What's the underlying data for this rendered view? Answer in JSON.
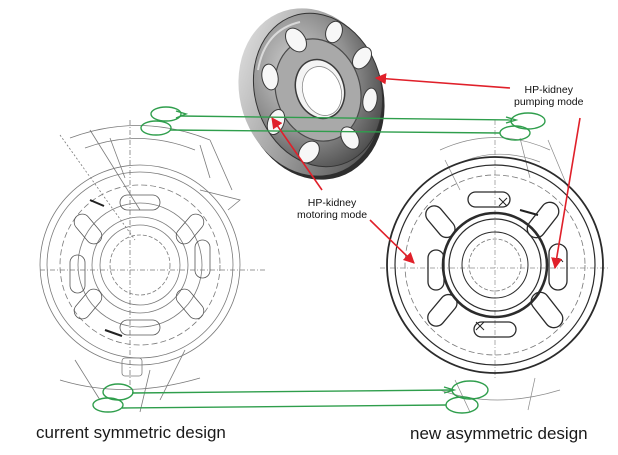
{
  "labels": {
    "pumping": [
      "HP-kidney",
      "pumping mode"
    ],
    "motoring": [
      "HP-kidney",
      "motoring mode"
    ],
    "left_caption": "current symmetric design",
    "right_caption": "new asymmetric design"
  },
  "colors": {
    "arrow": "#e0202a",
    "connector": "#2f9e4c",
    "drawing_line": "#7a7a7a",
    "drawing_dark": "#2b2b2b",
    "plate_dark": "#5a5a5a",
    "plate_light": "#c9c9c9"
  }
}
